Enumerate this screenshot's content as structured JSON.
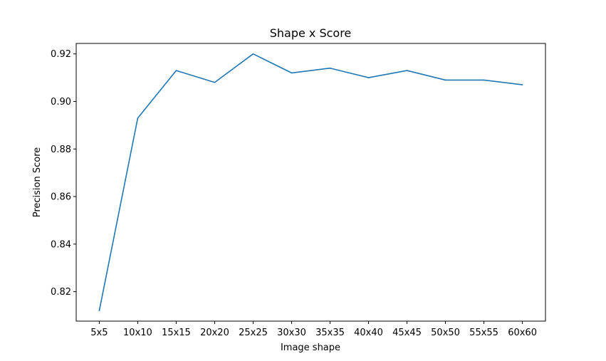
{
  "chart_data": {
    "type": "line",
    "title": "Shape x Score",
    "xlabel": "Image shape",
    "ylabel": "Precision Score",
    "categories": [
      "5x5",
      "10x10",
      "15x15",
      "20x20",
      "25x25",
      "30x30",
      "35x35",
      "40x40",
      "45x45",
      "50x50",
      "55x55",
      "60x60"
    ],
    "series": [
      {
        "values": [
          0.812,
          0.893,
          0.913,
          0.908,
          0.92,
          0.912,
          0.914,
          0.91,
          0.913,
          0.909,
          0.909,
          0.907
        ],
        "color": "#1f77b4"
      }
    ],
    "ylim": [
      0.8076,
      0.9244
    ],
    "yticks": [
      "0.82",
      "0.84",
      "0.86",
      "0.88",
      "0.90",
      "0.92"
    ],
    "grid": false,
    "legend": "none"
  }
}
